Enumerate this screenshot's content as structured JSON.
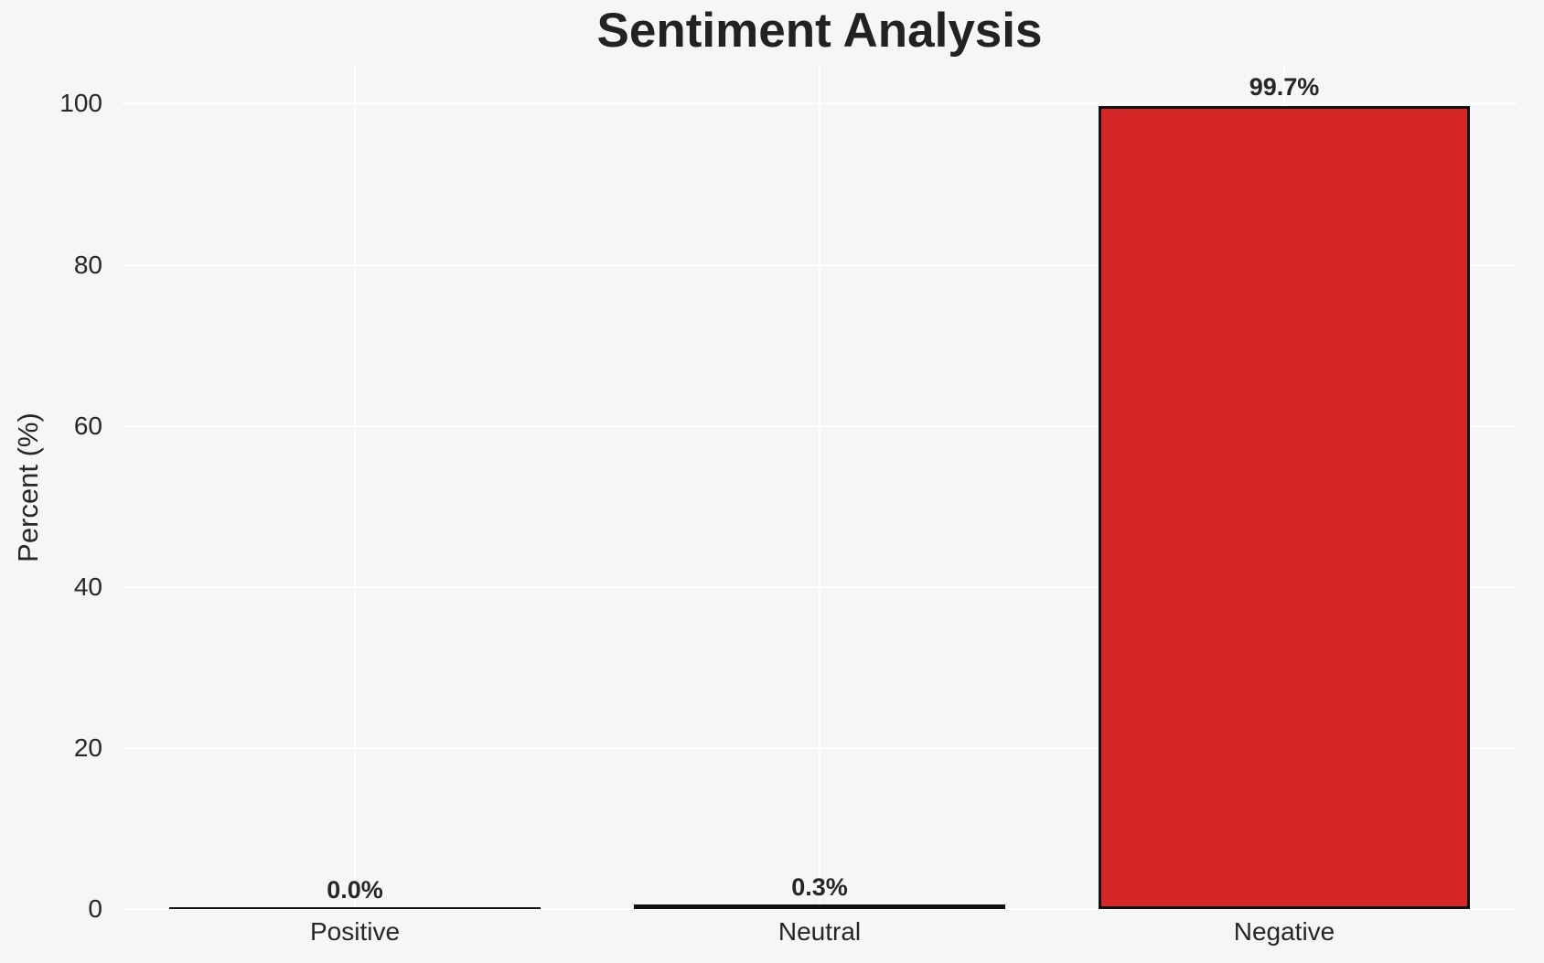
{
  "chart_data": {
    "type": "bar",
    "title": "Sentiment Analysis",
    "ylabel": "Percent (%)",
    "xlabel": "",
    "categories": [
      "Positive",
      "Neutral",
      "Negative"
    ],
    "values": [
      0.0,
      0.3,
      99.7
    ],
    "value_labels": [
      "0.0%",
      "0.3%",
      "99.7%"
    ],
    "yticks": [
      0,
      20,
      40,
      60,
      80,
      100
    ],
    "ylim": [
      0,
      104.7
    ],
    "grid": true,
    "legend": false,
    "colors": {
      "background": "#f6f6f6",
      "grid": "#ffffff",
      "bar_fill": "#d62728",
      "bar_edge": "#111111",
      "text": "#262626"
    }
  }
}
